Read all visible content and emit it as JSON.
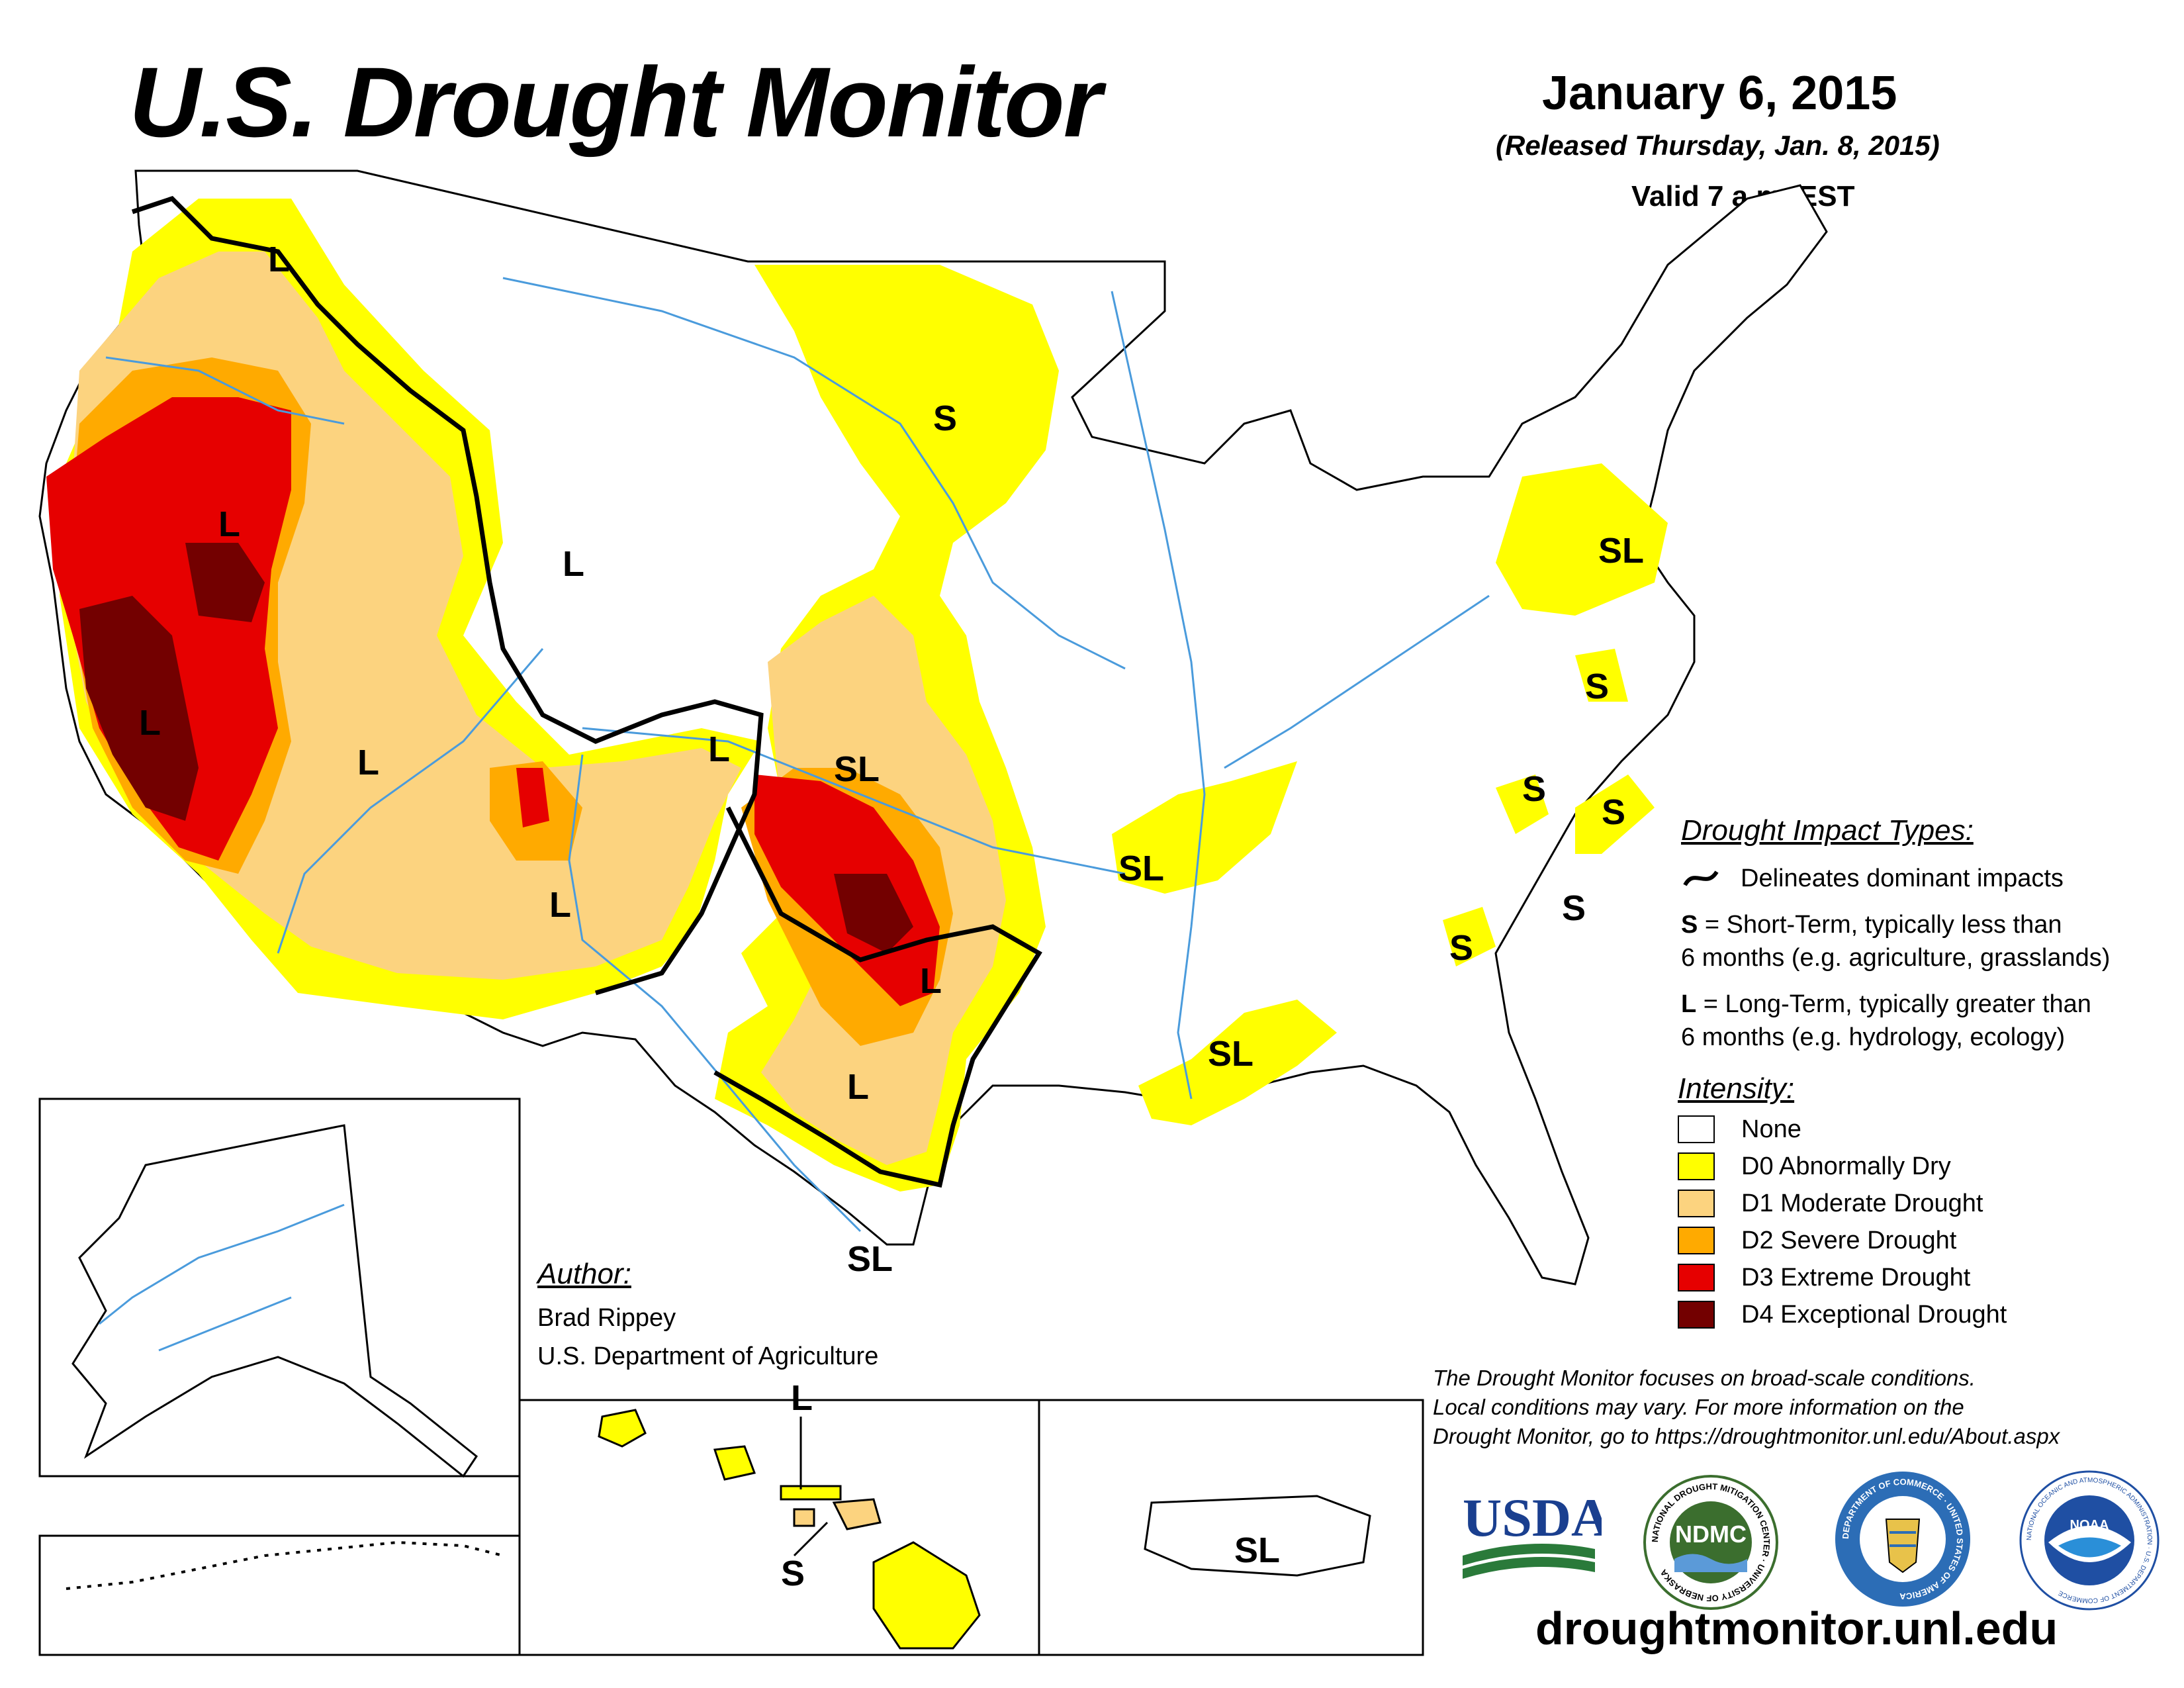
{
  "header": {
    "title": "U.S. Drought Monitor",
    "date": "January 6, 2015",
    "released": "(Released Thursday, Jan. 8, 2015)",
    "valid": "Valid 7 a.m. EST"
  },
  "map_labels": {
    "l_oregon": "L",
    "l_california_north": "L",
    "l_california_central": "L",
    "l_idaho": "L",
    "l_utah": "L",
    "l_arizona": "L",
    "l_colorado": "L",
    "sl_kansas": "SL",
    "l_oklahoma": "L",
    "l_texas": "L",
    "sl_texas_south": "SL",
    "s_minnesota": "S",
    "sl_arkansas": "SL",
    "sl_louisiana": "SL",
    "sl_pennsylvania": "SL",
    "s_virginia": "S",
    "s_nc_west": "S",
    "s_nc_east": "S",
    "s_sc": "S",
    "s_georgia": "S",
    "l_hawaii": "L",
    "s_hawaii": "S",
    "sl_puerto_rico": "SL"
  },
  "impact_types": {
    "heading": "Drought Impact Types:",
    "delineates": "Delineates dominant impacts",
    "s_key": "S",
    "s_text": "= Short-Term, typically less than",
    "s_text2": "6 months (e.g. agriculture, grasslands)",
    "l_key": "L",
    "l_text": "= Long-Term, typically greater than",
    "l_text2": "6 months (e.g. hydrology, ecology)"
  },
  "intensity": {
    "heading": "Intensity:",
    "levels": [
      {
        "label": "None",
        "color": "#ffffff"
      },
      {
        "label": "D0 Abnormally Dry",
        "color": "#ffff00"
      },
      {
        "label": "D1 Moderate Drought",
        "color": "#fcd37f"
      },
      {
        "label": "D2 Severe Drought",
        "color": "#ffaa00"
      },
      {
        "label": "D3 Extreme Drought",
        "color": "#e60000"
      },
      {
        "label": "D4 Exceptional Drought",
        "color": "#730000"
      }
    ]
  },
  "author": {
    "heading": "Author:",
    "name": "Brad Rippey",
    "org": "U.S. Department of Agriculture"
  },
  "disclaimer": {
    "line1": "The Drought Monitor focuses on broad-scale conditions.",
    "line2": "Local conditions may vary. For more information on the",
    "line3": "Drought Monitor, go to https://droughtmonitor.unl.edu/About.aspx"
  },
  "logos": {
    "usda": "USDA",
    "ndmc": "NDMC",
    "ndmc_ring": "NATIONAL DROUGHT MITIGATION CENTER · UNIVERSITY OF NEBRASKA",
    "doc_ring": "DEPARTMENT OF COMMERCE · UNITED STATES OF AMERICA",
    "noaa": "NOAA",
    "noaa_ring": "NATIONAL OCEANIC AND ATMOSPHERIC ADMINISTRATION · U.S. DEPARTMENT OF COMMERCE"
  },
  "website": "droughtmonitor.unl.edu",
  "colors": {
    "none": "#ffffff",
    "d0": "#ffff00",
    "d1": "#fcd37f",
    "d2": "#ffaa00",
    "d3": "#e60000",
    "d4": "#730000",
    "water": "#4a9bdc",
    "usda_blue": "#1a3f8f",
    "usda_green": "#2a7a3a",
    "ndmc_green": "#3b6e2e",
    "doc_blue": "#2c6db6",
    "noaa_blue": "#1f4fa3"
  }
}
